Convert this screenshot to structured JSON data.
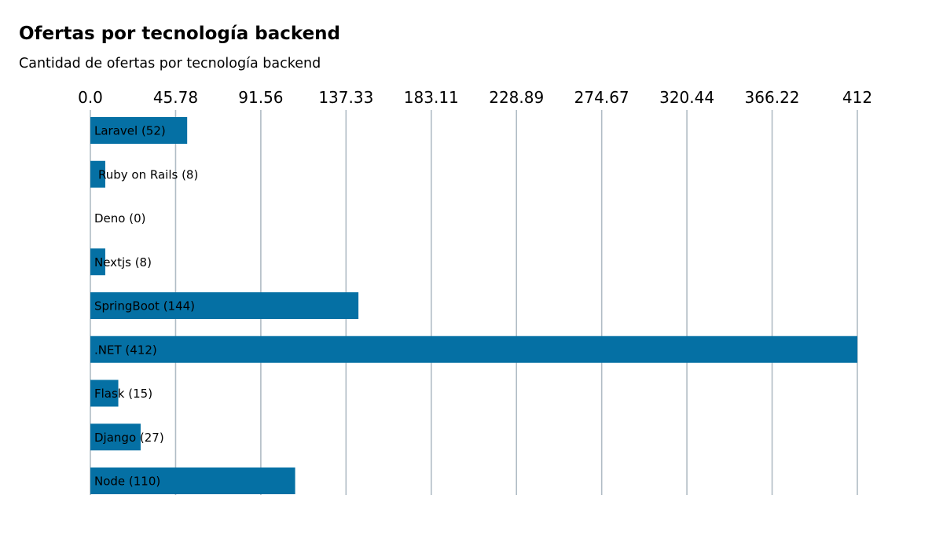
{
  "chart_data": {
    "type": "bar",
    "orientation": "horizontal",
    "title": "Ofertas por tecnología backend",
    "subtitle": "Cantidad de ofertas por tecnología backend",
    "xlabel": "",
    "ylabel": "",
    "xlim": [
      0,
      412
    ],
    "x_ticks": [
      "0.0",
      "45.78",
      "91.56",
      "137.33",
      "183.11",
      "228.89",
      "274.67",
      "320.44",
      "366.22",
      "412"
    ],
    "x_axis_position": "top",
    "grid": true,
    "legend": "none",
    "categories": [
      "Laravel",
      "Ruby on Rails",
      "Deno",
      "Nextjs",
      "SpringBoot",
      ".NET",
      "Flask",
      "Django",
      "Node"
    ],
    "values": [
      52,
      8,
      0,
      8,
      144,
      412,
      15,
      27,
      110
    ],
    "data_labels": [
      "Laravel (52)",
      "Ruby on Rails (8)",
      "Deno (0)",
      "Nextjs (8)",
      "SpringBoot (144)",
      ".NET (412)",
      "Flask (15)",
      "Django (27)",
      "Node (110)"
    ],
    "colors": {
      "bar": "#0570a4",
      "grid": "#b0bcc5",
      "text": "#000000"
    }
  }
}
